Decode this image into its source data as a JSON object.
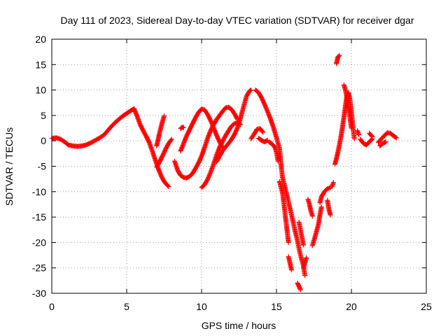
{
  "chart_data": {
    "type": "scatter",
    "title": "Day 111 of 2023, Sidereal Day-to-day VTEC variation (SDTVAR) for receiver dgar",
    "xlabel": "GPS time / hours",
    "ylabel": "SDTVAR / TECUs",
    "xlim": [
      0,
      25
    ],
    "ylim": [
      -30,
      20
    ],
    "xticks": [
      0,
      5,
      10,
      15,
      20,
      25
    ],
    "yticks": [
      -30,
      -25,
      -20,
      -15,
      -10,
      -5,
      0,
      5,
      10,
      15,
      20
    ],
    "grid": true,
    "marker": "plus",
    "color": "#ff0000",
    "series": [
      {
        "segments": [
          [
            [
              0.0,
              0.5
            ],
            [
              0.3,
              0.6
            ],
            [
              0.6,
              0.3
            ],
            [
              0.9,
              -0.3
            ],
            [
              1.1,
              -0.8
            ],
            [
              1.4,
              -1.0
            ],
            [
              1.7,
              -1.1
            ],
            [
              2.0,
              -1.0
            ],
            [
              2.3,
              -0.8
            ],
            [
              2.6,
              -0.4
            ],
            [
              2.9,
              0.1
            ],
            [
              3.2,
              0.6
            ],
            [
              3.5,
              1.2
            ],
            [
              3.7,
              1.9
            ],
            [
              3.9,
              2.6
            ],
            [
              4.1,
              3.2
            ],
            [
              4.3,
              3.8
            ],
            [
              4.5,
              4.3
            ],
            [
              4.7,
              4.8
            ],
            [
              4.9,
              5.2
            ],
            [
              5.1,
              5.6
            ],
            [
              5.3,
              6.0
            ],
            [
              5.5,
              6.3
            ],
            [
              5.7,
              4.8
            ],
            [
              5.9,
              3.2
            ],
            [
              6.1,
              2.0
            ],
            [
              6.3,
              0.9
            ],
            [
              6.5,
              -0.3
            ],
            [
              6.7,
              -1.9
            ],
            [
              6.9,
              -3.7
            ],
            [
              7.1,
              -5.4
            ],
            [
              7.3,
              -6.9
            ],
            [
              7.5,
              -8.0
            ],
            [
              7.7,
              -8.7
            ],
            [
              7.8,
              -9.0
            ]
          ],
          [
            [
              7.0,
              -1.0
            ],
            [
              7.1,
              0.3
            ],
            [
              7.2,
              1.6
            ],
            [
              7.3,
              2.8
            ],
            [
              7.4,
              3.9
            ],
            [
              7.5,
              4.9
            ]
          ],
          [
            [
              7.0,
              -5.2
            ],
            [
              7.2,
              -4.1
            ],
            [
              7.4,
              -2.9
            ],
            [
              7.6,
              -1.6
            ],
            [
              7.8,
              -0.5
            ],
            [
              8.0,
              0.3
            ]
          ],
          [
            [
              8.2,
              -4.0
            ],
            [
              8.4,
              -5.8
            ],
            [
              8.6,
              -6.8
            ],
            [
              8.8,
              -7.2
            ],
            [
              9.0,
              -7.3
            ],
            [
              9.2,
              -7.0
            ],
            [
              9.4,
              -6.4
            ],
            [
              9.6,
              -5.4
            ],
            [
              9.8,
              -4.3
            ],
            [
              10.0,
              -3.0
            ],
            [
              10.2,
              -1.3
            ],
            [
              10.4,
              0.5
            ],
            [
              10.6,
              2.0
            ],
            [
              10.8,
              3.2
            ],
            [
              11.0,
              4.2
            ],
            [
              11.2,
              5.0
            ],
            [
              11.4,
              5.8
            ],
            [
              11.6,
              6.5
            ],
            [
              11.8,
              6.6
            ],
            [
              12.0,
              6.2
            ],
            [
              12.2,
              5.3
            ],
            [
              12.4,
              4.2
            ]
          ],
          [
            [
              8.6,
              2.4
            ],
            [
              8.7,
              2.7
            ],
            [
              8.8,
              2.6
            ]
          ],
          [
            [
              8.6,
              -2.0
            ],
            [
              8.8,
              -0.5
            ],
            [
              9.0,
              1.0
            ],
            [
              9.2,
              2.2
            ],
            [
              9.4,
              3.4
            ],
            [
              9.6,
              4.6
            ],
            [
              9.8,
              5.6
            ],
            [
              10.0,
              6.3
            ],
            [
              10.2,
              6.1
            ],
            [
              10.4,
              5.2
            ],
            [
              10.6,
              4.0
            ],
            [
              10.8,
              2.6
            ],
            [
              11.0,
              1.1
            ],
            [
              11.2,
              -0.2
            ],
            [
              11.4,
              -1.3
            ]
          ],
          [
            [
              10.0,
              -9.2
            ],
            [
              10.2,
              -8.6
            ],
            [
              10.4,
              -7.6
            ],
            [
              10.6,
              -6.2
            ],
            [
              10.8,
              -4.6
            ],
            [
              11.0,
              -2.8
            ],
            [
              11.2,
              -1.3
            ],
            [
              11.4,
              -0.1
            ],
            [
              11.6,
              1.0
            ],
            [
              11.8,
              2.0
            ],
            [
              12.0,
              2.9
            ],
            [
              12.2,
              3.4
            ],
            [
              12.4,
              3.6
            ],
            [
              12.6,
              3.2
            ]
          ],
          [
            [
              11.0,
              -4.1
            ],
            [
              11.2,
              -3.0
            ],
            [
              11.4,
              -2.0
            ],
            [
              11.6,
              -1.2
            ],
            [
              11.8,
              -0.5
            ],
            [
              12.0,
              0.3
            ],
            [
              12.2,
              1.3
            ],
            [
              12.4,
              2.6
            ],
            [
              12.6,
              4.5
            ],
            [
              12.8,
              6.7
            ],
            [
              13.0,
              8.8
            ],
            [
              13.2,
              9.8
            ],
            [
              13.3,
              10.0
            ]
          ],
          [
            [
              13.6,
              10.0
            ],
            [
              13.8,
              9.5
            ],
            [
              14.0,
              8.5
            ],
            [
              14.2,
              7.2
            ],
            [
              14.4,
              5.8
            ],
            [
              14.6,
              4.3
            ],
            [
              14.8,
              2.6
            ],
            [
              15.0,
              0.6
            ],
            [
              15.2,
              -1.5
            ],
            [
              15.3,
              -4.5
            ],
            [
              15.4,
              -7.2
            ],
            [
              15.6,
              -9.5
            ],
            [
              15.8,
              -12.0
            ],
            [
              16.0,
              -14.5
            ],
            [
              16.2,
              -17.2
            ],
            [
              16.4,
              -19.7
            ],
            [
              16.6,
              -22.5
            ],
            [
              16.8,
              -24.6
            ],
            [
              16.9,
              -26.5
            ]
          ],
          [
            [
              13.3,
              0.4
            ],
            [
              13.5,
              1.3
            ],
            [
              13.7,
              2.3
            ],
            [
              13.9,
              2.4
            ],
            [
              14.1,
              1.7
            ]
          ],
          [
            [
              13.8,
              0.5
            ],
            [
              14.0,
              0.1
            ],
            [
              14.2,
              -0.2
            ],
            [
              14.4,
              0.1
            ]
          ],
          [
            [
              14.5,
              -0.2
            ],
            [
              14.7,
              -0.6
            ],
            [
              14.9,
              -1.3
            ],
            [
              15.0,
              -2.3
            ],
            [
              15.1,
              -4.0
            ]
          ],
          [
            [
              15.2,
              -8.0
            ],
            [
              15.4,
              -10.2
            ],
            [
              15.5,
              -12.5
            ],
            [
              15.6,
              -15.0
            ],
            [
              15.7,
              -17.5
            ],
            [
              15.8,
              -20.0
            ]
          ],
          [
            [
              15.8,
              -22.8
            ],
            [
              15.9,
              -24.0
            ],
            [
              16.0,
              -25.4
            ]
          ],
          [
            [
              16.5,
              -16.0
            ],
            [
              16.6,
              -17.5
            ],
            [
              16.7,
              -19.0
            ],
            [
              16.8,
              -20.5
            ]
          ],
          [
            [
              16.4,
              -28.0
            ],
            [
              16.5,
              -28.6
            ],
            [
              16.6,
              -29.3
            ]
          ],
          [
            [
              16.8,
              -25.0
            ],
            [
              17.0,
              -23.0
            ]
          ],
          [
            [
              17.1,
              -11.5
            ],
            [
              17.2,
              -12.5
            ],
            [
              17.3,
              -13.8
            ],
            [
              17.4,
              -14.8
            ]
          ],
          [
            [
              17.4,
              -20.6
            ],
            [
              17.6,
              -18.6
            ],
            [
              17.8,
              -16.4
            ],
            [
              17.9,
              -14.6
            ],
            [
              18.0,
              -13.0
            ]
          ],
          [
            [
              17.9,
              -12.2
            ],
            [
              18.0,
              -11.0
            ],
            [
              18.2,
              -10.0
            ],
            [
              18.4,
              -9.4
            ],
            [
              18.6,
              -9.2
            ]
          ],
          [
            [
              18.4,
              -11.7
            ],
            [
              18.5,
              -13.5
            ],
            [
              18.6,
              -14.6
            ]
          ],
          [
            [
              18.7,
              -9.0
            ],
            [
              18.8,
              -8.2
            ]
          ],
          [
            [
              18.9,
              -4.6
            ],
            [
              19.0,
              -3.5
            ],
            [
              19.1,
              -2.2
            ],
            [
              19.2,
              -0.8
            ],
            [
              19.3,
              0.8
            ],
            [
              19.4,
              2.6
            ],
            [
              19.5,
              4.6
            ],
            [
              19.6,
              6.8
            ],
            [
              19.7,
              8.8
            ],
            [
              19.8,
              9.5
            ],
            [
              19.9,
              8.2
            ],
            [
              20.0,
              5.8
            ],
            [
              20.1,
              2.8
            ],
            [
              20.2,
              0.4
            ]
          ],
          [
            [
              19.5,
              11.0
            ],
            [
              19.6,
              10.0
            ],
            [
              19.7,
              8.5
            ],
            [
              19.8,
              6.5
            ],
            [
              19.9,
              4.6
            ],
            [
              20.0,
              2.5
            ]
          ],
          [
            [
              19.0,
              15.2
            ],
            [
              19.1,
              16.5
            ],
            [
              19.2,
              16.8
            ]
          ],
          [
            [
              20.4,
              2.0
            ],
            [
              20.5,
              1.2
            ]
          ],
          [
            [
              20.6,
              0.3
            ],
            [
              20.8,
              -0.5
            ],
            [
              21.0,
              -0.8
            ],
            [
              21.2,
              -0.2
            ],
            [
              21.4,
              0.4
            ]
          ],
          [
            [
              21.2,
              1.5
            ],
            [
              21.4,
              0.8
            ]
          ],
          [
            [
              21.8,
              -0.3
            ],
            [
              22.0,
              0.4
            ],
            [
              22.2,
              1.0
            ],
            [
              22.4,
              1.6
            ],
            [
              22.6,
              1.5
            ],
            [
              22.8,
              1.0
            ],
            [
              23.0,
              0.6
            ]
          ],
          [
            [
              21.9,
              -1.0
            ],
            [
              22.1,
              -0.5
            ],
            [
              22.3,
              -0.2
            ]
          ]
        ]
      }
    ]
  }
}
